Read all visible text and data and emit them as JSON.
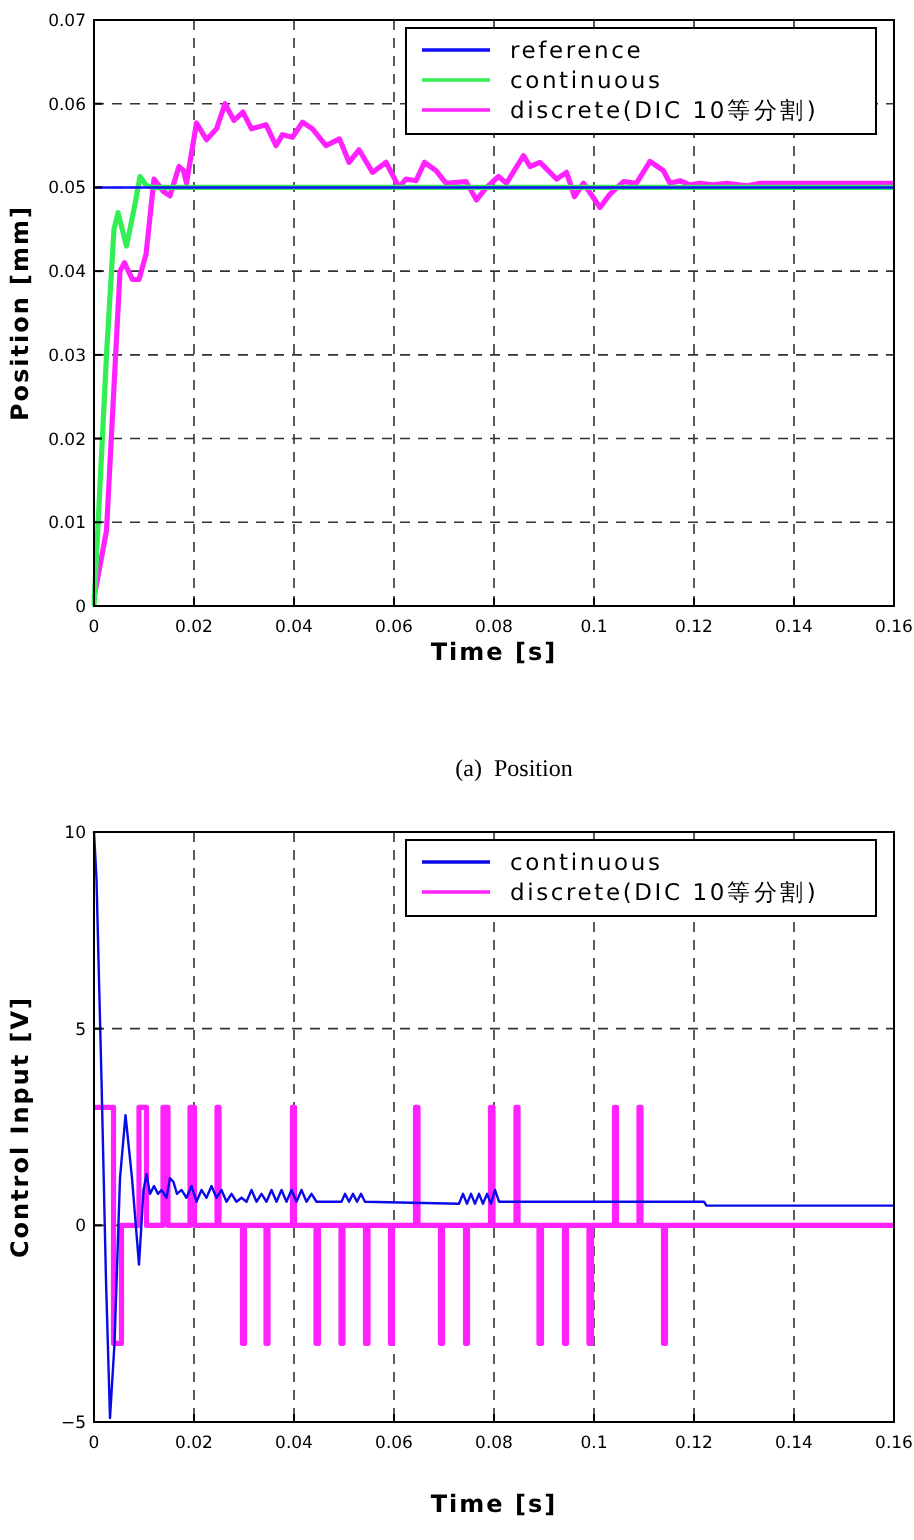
{
  "chart_data": [
    {
      "type": "line",
      "xlabel": "Time [s]",
      "ylabel": "Position [mm]",
      "xlim": [
        0,
        0.16
      ],
      "xticks": [
        0,
        0.02,
        0.04,
        0.06,
        0.08,
        0.1,
        0.12,
        0.14,
        0.16
      ],
      "ylim": [
        0,
        0.07
      ],
      "yticks": [
        0,
        0.01,
        0.02,
        0.03,
        0.04,
        0.05,
        0.06,
        0.07
      ],
      "grid": true,
      "legend": "top right",
      "line_style": "solid",
      "annotations": [
        "(a)  Position"
      ],
      "series": [
        {
          "name": "reference",
          "color": "#1010ff",
          "x": [
            0,
            0.16
          ],
          "values": [
            0.05,
            0.05
          ]
        },
        {
          "name": "continuous",
          "color": "#33ee55",
          "x": [
            0,
            0.001,
            0.0025,
            0.004,
            0.0048,
            0.0065,
            0.0082,
            0.0092,
            0.0105,
            0.012,
            0.16
          ],
          "values": [
            0,
            0.012,
            0.03,
            0.045,
            0.047,
            0.043,
            0.048,
            0.0513,
            0.0502,
            0.05,
            0.05
          ]
        },
        {
          "name": "discrete(DIC 10等分割)",
          "color": "#ff22ff",
          "x": [
            0,
            0.0025,
            0.0052,
            0.0061,
            0.0077,
            0.009,
            0.0104,
            0.012,
            0.0139,
            0.0152,
            0.017,
            0.0179,
            0.0185,
            0.0205,
            0.0225,
            0.0245,
            0.0262,
            0.028,
            0.0298,
            0.0315,
            0.0344,
            0.0364,
            0.0377,
            0.0397,
            0.0417,
            0.0437,
            0.0464,
            0.0491,
            0.051,
            0.053,
            0.0557,
            0.0584,
            0.061,
            0.0624,
            0.0644,
            0.0661,
            0.0684,
            0.0704,
            0.0744,
            0.0765,
            0.0785,
            0.0809,
            0.0825,
            0.0859,
            0.0872,
            0.0892,
            0.0912,
            0.0925,
            0.0945,
            0.0961,
            0.0979,
            0.1012,
            0.1032,
            0.1059,
            0.1085,
            0.1112,
            0.1139,
            0.1152,
            0.1172,
            0.1192,
            0.1212,
            0.1238,
            0.1265,
            0.1306,
            0.1332,
            0.16
          ],
          "values": [
            0.001,
            0.009,
            0.04,
            0.041,
            0.039,
            0.039,
            0.042,
            0.051,
            0.0495,
            0.049,
            0.0525,
            0.052,
            0.0505,
            0.0577,
            0.0557,
            0.057,
            0.06,
            0.058,
            0.059,
            0.057,
            0.0575,
            0.055,
            0.0563,
            0.056,
            0.0578,
            0.057,
            0.055,
            0.0558,
            0.053,
            0.0545,
            0.0518,
            0.053,
            0.05,
            0.051,
            0.0508,
            0.053,
            0.052,
            0.0505,
            0.0507,
            0.0485,
            0.05,
            0.0513,
            0.0505,
            0.0538,
            0.0525,
            0.053,
            0.0518,
            0.051,
            0.0518,
            0.0489,
            0.0505,
            0.0476,
            0.0492,
            0.0507,
            0.0505,
            0.0531,
            0.052,
            0.0505,
            0.0508,
            0.0503,
            0.0505,
            0.0503,
            0.0505,
            0.0502,
            0.0505,
            0.0505
          ]
        }
      ]
    },
    {
      "type": "line",
      "xlabel": "Time [s]",
      "ylabel": "Control Input [V]",
      "xlim": [
        0,
        0.16
      ],
      "xticks": [
        0,
        0.02,
        0.04,
        0.06,
        0.08,
        0.1,
        0.12,
        0.14,
        0.16
      ],
      "ylim": [
        -5,
        10
      ],
      "yticks": [
        {
          "value": -5,
          "label": "−5"
        },
        0,
        5,
        10
      ],
      "grid": true,
      "legend": "top right",
      "line_style": "solid",
      "series": [
        {
          "name": "continuous",
          "color": "#0a0ae8",
          "x": [
            0,
            0.0005,
            0.0015,
            0.0024,
            0.0032,
            0.0041,
            0.0052,
            0.0063,
            0.0076,
            0.009,
            0.0099,
            0.0105,
            0.0112,
            0.012,
            0.0128,
            0.0135,
            0.0145,
            0.0152,
            0.0159,
            0.0166,
            0.0175,
            0.0185,
            0.0195,
            0.0205,
            0.0215,
            0.0225,
            0.0235,
            0.0245,
            0.0255,
            0.0265,
            0.0275,
            0.0285,
            0.0295,
            0.0305,
            0.0315,
            0.0325,
            0.0335,
            0.0345,
            0.0355,
            0.0365,
            0.0375,
            0.0385,
            0.0395,
            0.0405,
            0.0415,
            0.0425,
            0.0435,
            0.0445,
            0.0495,
            0.0502,
            0.051,
            0.0518,
            0.0526,
            0.0534,
            0.0542,
            0.073,
            0.0738,
            0.0746,
            0.0754,
            0.0762,
            0.077,
            0.0778,
            0.0786,
            0.0794,
            0.0802,
            0.081,
            0.122,
            0.1225,
            0.16
          ],
          "values": [
            10,
            8.8,
            3.7,
            -1.4,
            -4.9,
            -3,
            1.2,
            2.8,
            1.2,
            -1,
            0.9,
            1.3,
            0.8,
            1,
            0.8,
            0.9,
            0.7,
            1.2,
            1.1,
            0.8,
            0.9,
            0.7,
            1,
            0.6,
            0.9,
            0.7,
            1,
            0.7,
            0.9,
            0.6,
            0.8,
            0.6,
            0.7,
            0.6,
            0.9,
            0.6,
            0.8,
            0.6,
            0.9,
            0.6,
            0.9,
            0.6,
            0.9,
            0.6,
            0.9,
            0.6,
            0.8,
            0.6,
            0.6,
            0.8,
            0.6,
            0.8,
            0.6,
            0.8,
            0.6,
            0.55,
            0.8,
            0.55,
            0.8,
            0.55,
            0.8,
            0.55,
            0.8,
            0.55,
            0.9,
            0.6,
            0.6,
            0.5,
            0.5
          ]
        },
        {
          "name": "discrete(DIC 10等分割)",
          "color": "#ff22ff",
          "x": [
            0,
            0.0039,
            0.0039,
            0.0055,
            0.0055,
            0.009,
            0.009,
            0.0105,
            0.0105,
            0.0138,
            0.0138,
            0.0148,
            0.0148,
            0.0192,
            0.0192,
            0.0201,
            0.0201,
            0.0246,
            0.0246,
            0.025,
            0.025,
            0.0297,
            0.0297,
            0.0301,
            0.0301,
            0.0344,
            0.0344,
            0.0348,
            0.0348,
            0.0397,
            0.0397,
            0.0401,
            0.0401,
            0.0444,
            0.0444,
            0.0449,
            0.0449,
            0.0494,
            0.0494,
            0.0498,
            0.0498,
            0.0543,
            0.0543,
            0.0548,
            0.0548,
            0.0593,
            0.0593,
            0.0597,
            0.0597,
            0.0643,
            0.0643,
            0.0648,
            0.0648,
            0.0693,
            0.0693,
            0.0697,
            0.0697,
            0.0743,
            0.0743,
            0.0747,
            0.0747,
            0.0793,
            0.0793,
            0.0798,
            0.0798,
            0.0844,
            0.0844,
            0.0848,
            0.0848,
            0.089,
            0.089,
            0.0895,
            0.0895,
            0.0941,
            0.0941,
            0.0945,
            0.0945,
            0.099,
            0.099,
            0.0995,
            0.0995,
            0.1041,
            0.1041,
            0.1045,
            0.1045,
            0.109,
            0.109,
            0.1094,
            0.1094,
            0.1139,
            0.1139,
            0.1143,
            0.1143,
            0.16
          ],
          "values": [
            3,
            3,
            -3,
            -3,
            0,
            0,
            3,
            3,
            0,
            0,
            3,
            3,
            0,
            0,
            3,
            3,
            0,
            0,
            3,
            3,
            0,
            0,
            -3,
            -3,
            0,
            0,
            -3,
            -3,
            0,
            0,
            3,
            3,
            0,
            0,
            -3,
            -3,
            0,
            0,
            -3,
            -3,
            0,
            0,
            -3,
            -3,
            0,
            0,
            -3,
            -3,
            0,
            0,
            3,
            3,
            0,
            0,
            -3,
            -3,
            0,
            0,
            -3,
            -3,
            0,
            0,
            3,
            3,
            0,
            0,
            3,
            3,
            0,
            0,
            -3,
            -3,
            0,
            0,
            -3,
            -3,
            0,
            0,
            -3,
            -3,
            0,
            0,
            3,
            3,
            0,
            0,
            3,
            3,
            0,
            0,
            -3,
            -3,
            0,
            0
          ]
        }
      ]
    }
  ]
}
